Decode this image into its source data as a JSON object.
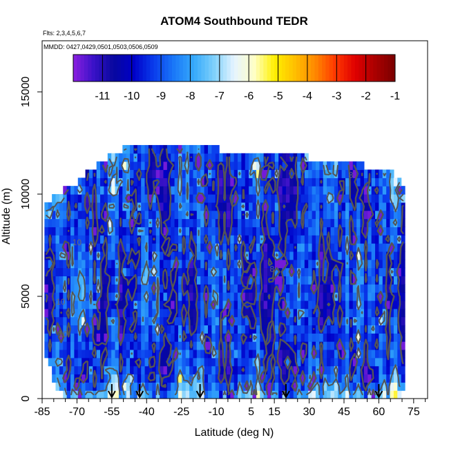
{
  "chart_data": {
    "type": "heatmap",
    "title": "ATOM4 Southbound TEDR",
    "annotations": [
      "Flts: 2,3,4,5,6,7",
      "MMDD: 0427,0429,0501,0503,0506,0509"
    ],
    "xlabel": "Latitude (deg N)",
    "ylabel": "Altitude (m)",
    "xlim": [
      -85,
      81
    ],
    "ylim": [
      0,
      17500
    ],
    "x_ticks": [
      -85,
      -70,
      -55,
      -40,
      -25,
      -10,
      5,
      15,
      30,
      45,
      60,
      75
    ],
    "x_tick_labels": [
      "-85",
      "-70",
      "-55",
      "-40",
      "-25",
      "-10",
      "5",
      "15",
      "30",
      "45",
      "60",
      "75"
    ],
    "x_minor_ticks": [
      -80,
      -75,
      -65,
      -60,
      -50,
      -45,
      -35,
      -30,
      -20,
      -15,
      -5,
      0,
      10,
      20,
      25,
      35,
      40,
      50,
      55,
      65,
      70,
      80
    ],
    "y_ticks": [
      0,
      5000,
      10000,
      15000
    ],
    "y_tick_labels": [
      "0",
      "5000",
      "10000",
      "15000"
    ],
    "colorbar": {
      "range": [
        -12,
        -1
      ],
      "ticks": [
        -11,
        -10,
        -9,
        -8,
        -7,
        -6,
        -5,
        -4,
        -3,
        -2,
        -1
      ],
      "tick_labels": [
        "-11",
        "-10",
        "-9",
        "-8",
        "-7",
        "-6",
        "-5",
        "-4",
        "-3",
        "-2",
        "-1"
      ],
      "colors": [
        "#8b1fe0",
        "#3a12c8",
        "#08089e",
        "#0000c8",
        "#0a3cec",
        "#1a78f8",
        "#36aafb",
        "#7fd0fb",
        "#e6f4ff",
        "#ffffc6",
        "#fff000",
        "#ffc000",
        "#ff8a00",
        "#ff3a00",
        "#e00000",
        "#aa0000",
        "#7a0000"
      ]
    },
    "contour_levels": [
      -10,
      -8
    ],
    "contour_labels": [
      "10",
      "8"
    ],
    "contour_color": "#555555",
    "profile_latitudes": [
      -55,
      -43,
      -17,
      20,
      60
    ],
    "lat_extent": [
      -84,
      71
    ],
    "top_profile": [
      {
        "lat": -84,
        "alt": 9500
      },
      {
        "lat": -79,
        "alt": 10000
      },
      {
        "lat": -72,
        "alt": 10400
      },
      {
        "lat": -67,
        "alt": 10900
      },
      {
        "lat": -62,
        "alt": 11400
      },
      {
        "lat": -55,
        "alt": 11900
      },
      {
        "lat": -46,
        "alt": 12400
      },
      {
        "lat": -14,
        "alt": 12400
      },
      {
        "lat": -3,
        "alt": 11900
      },
      {
        "lat": 29,
        "alt": 11800
      },
      {
        "lat": 54,
        "alt": 11400
      },
      {
        "lat": 66,
        "alt": 11000
      },
      {
        "lat": 71,
        "alt": 10500
      }
    ],
    "bottom_profile": [
      {
        "lat": -84,
        "alt": 2300
      },
      {
        "lat": -80,
        "alt": 800
      },
      {
        "lat": -74,
        "alt": 0
      },
      {
        "lat": 70,
        "alt": 0
      },
      {
        "lat": 71,
        "alt": 800
      }
    ]
  }
}
